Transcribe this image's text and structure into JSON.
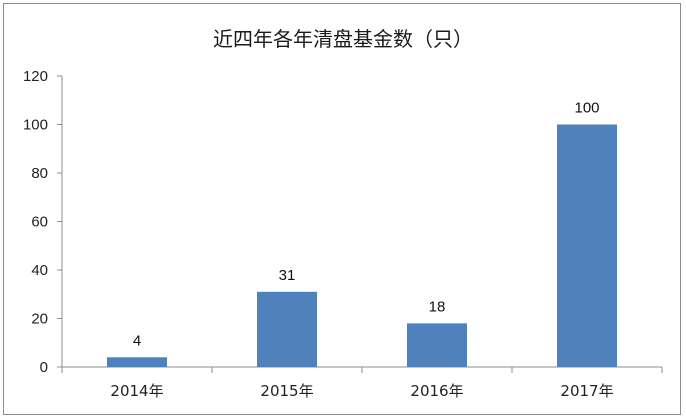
{
  "chart_data": {
    "type": "bar",
    "title": "近四年各年清盘基金数（只）",
    "categories": [
      "2014年",
      "2015年",
      "2016年",
      "2017年"
    ],
    "values": [
      4,
      31,
      18,
      100
    ],
    "data_labels": [
      "4",
      "31",
      "18",
      "100"
    ],
    "ylim": [
      0,
      120
    ],
    "yticks": [
      "0",
      "20",
      "40",
      "60",
      "80",
      "100",
      "120"
    ],
    "xlabel": "",
    "ylabel": "",
    "grid": false,
    "bar_color": "#4f81bd",
    "axis_color": "#8c8c8c"
  }
}
